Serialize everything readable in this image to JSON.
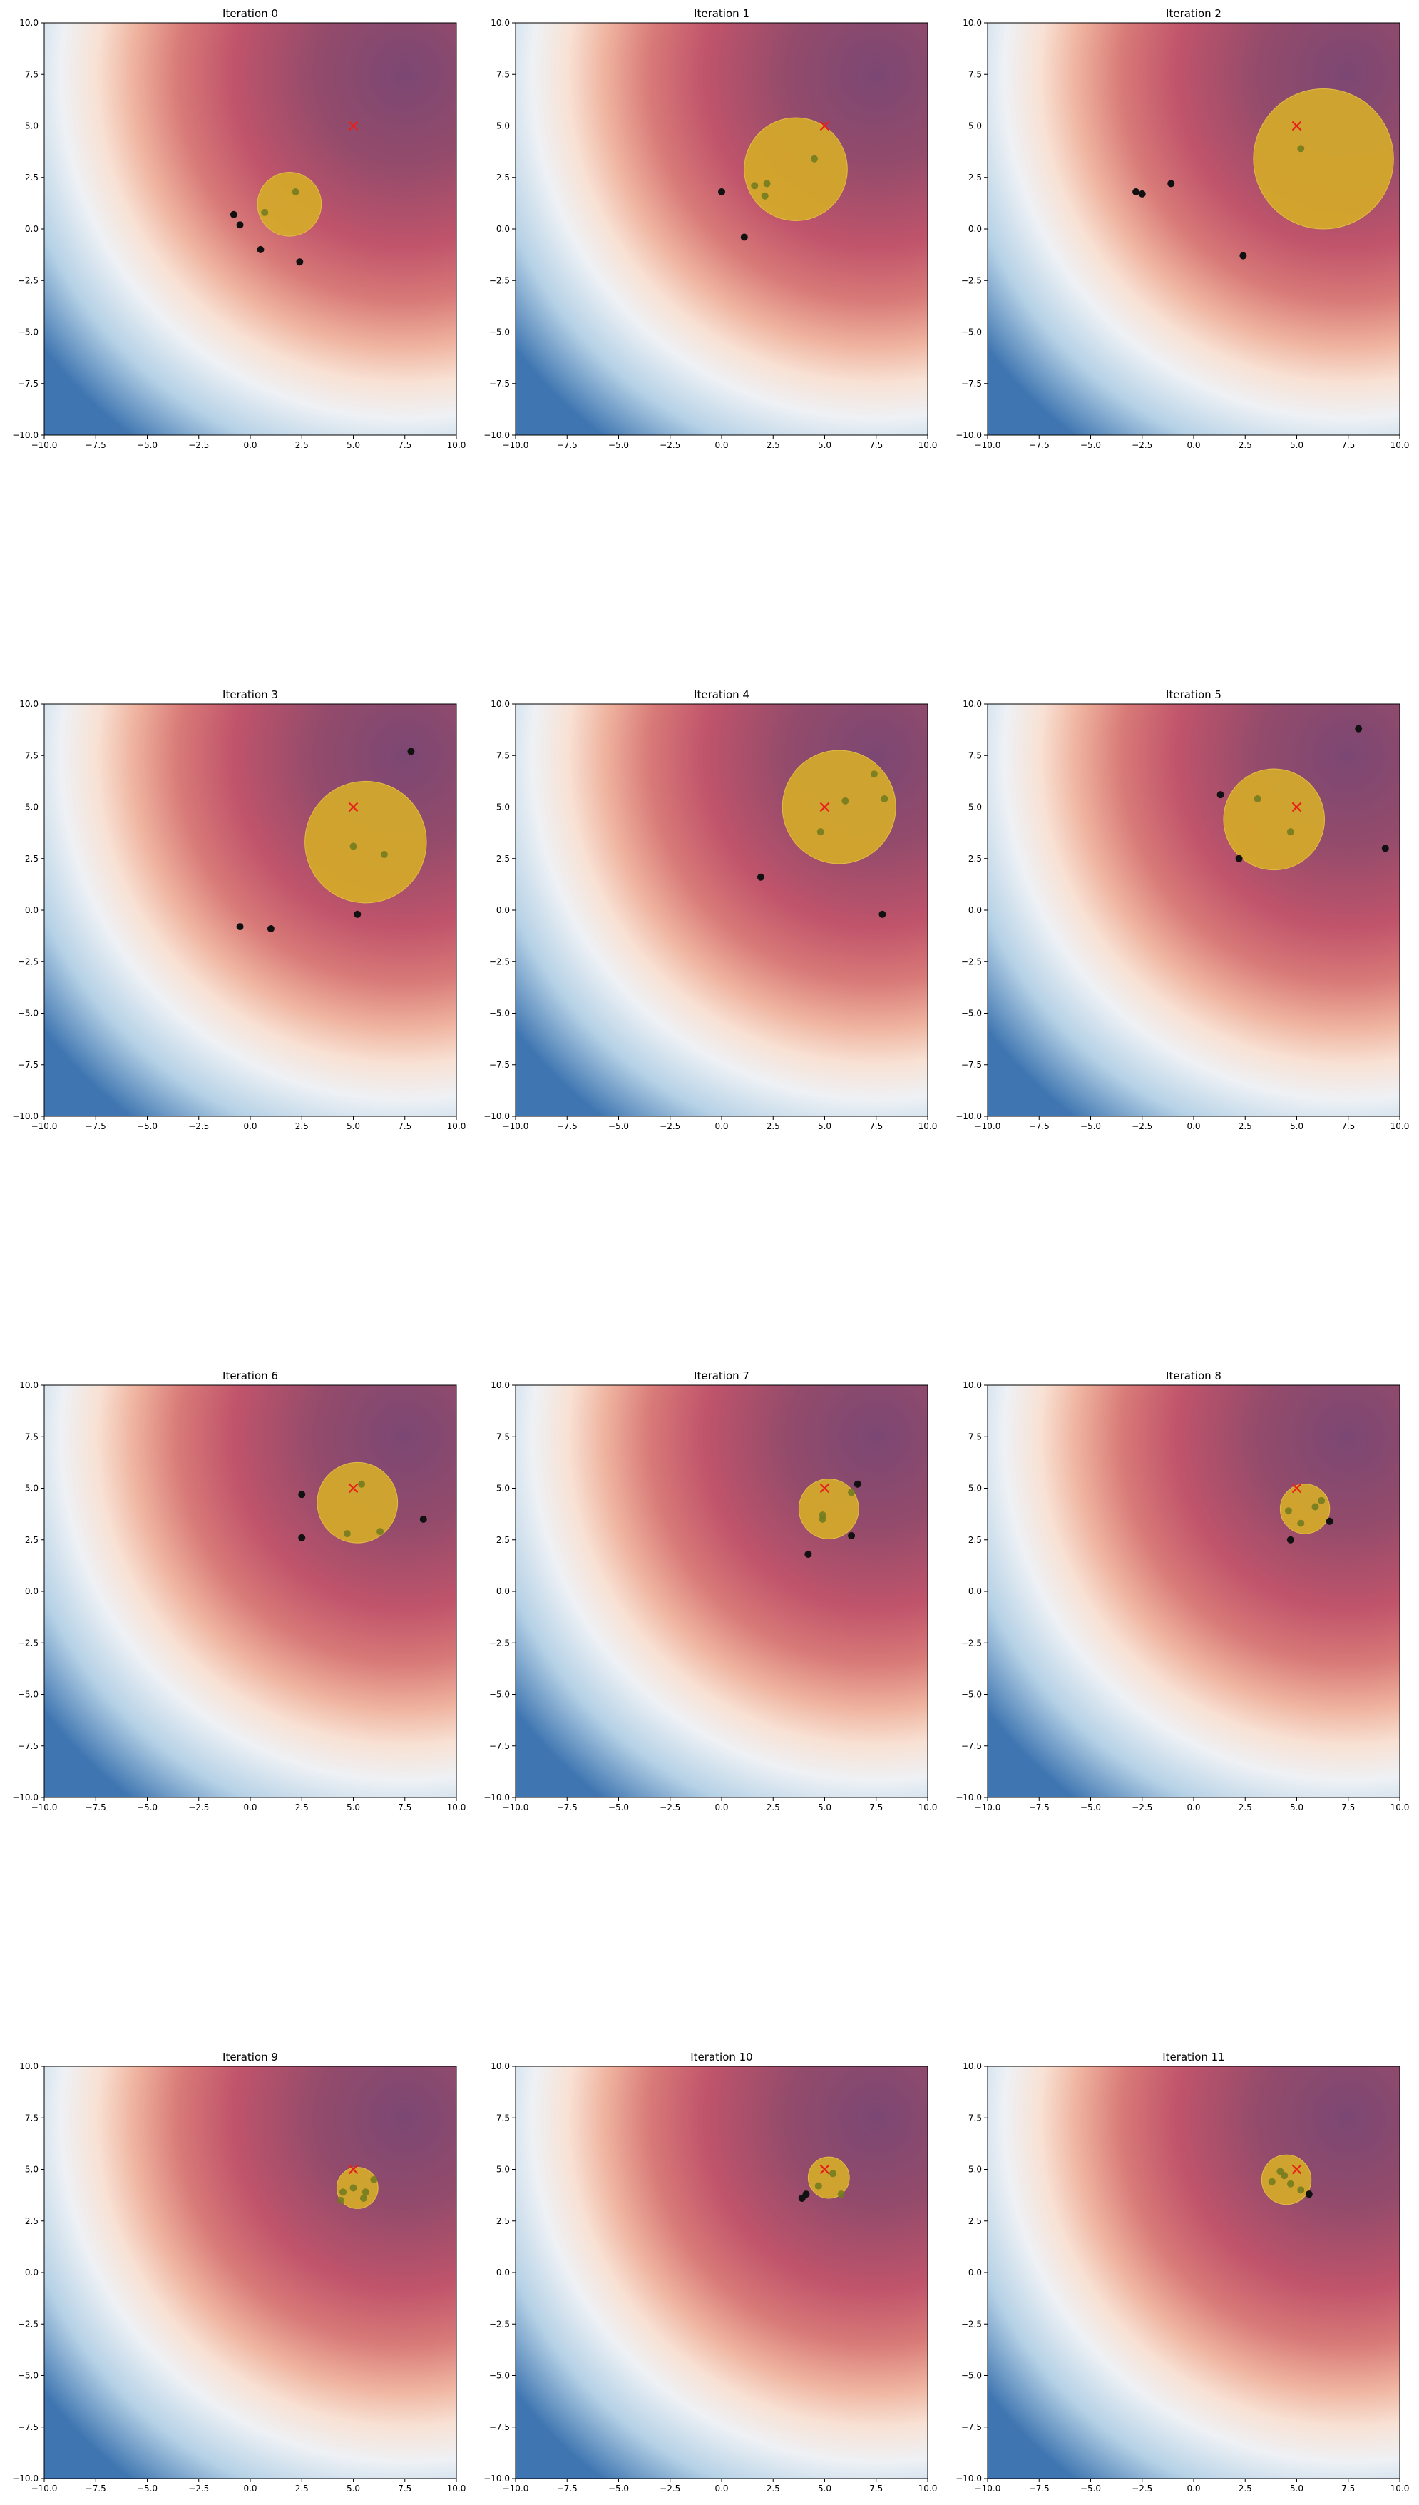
{
  "figure": {
    "background": "#ffffff",
    "accent_circle": "#d4aa2a",
    "target_marker": "#e8201a"
  },
  "chart_data": [
    {
      "type": "scatter",
      "title": "Iteration 0",
      "xlim": [
        -10,
        10
      ],
      "ylim": [
        -10,
        10
      ],
      "xticks": [
        -10,
        -7.5,
        -5,
        -2.5,
        0,
        2.5,
        5,
        7.5,
        10
      ],
      "yticks": [
        -10,
        -7.5,
        -5,
        -2.5,
        0,
        2.5,
        5,
        7.5,
        10
      ],
      "tick_format": "fixed1",
      "background": "heatmap",
      "target": {
        "x": 5,
        "y": 5,
        "marker": "x",
        "color": "#e8201a"
      },
      "circle": {
        "cx": 1.9,
        "cy": 1.2,
        "r": 1.55
      },
      "points": [
        {
          "x": -0.8,
          "y": 0.7
        },
        {
          "x": -0.5,
          "y": 0.2
        },
        {
          "x": 0.5,
          "y": -1.0
        },
        {
          "x": 2.4,
          "y": -1.6
        },
        {
          "x": 0.7,
          "y": 0.8
        },
        {
          "x": 2.2,
          "y": 1.8
        }
      ]
    },
    {
      "type": "scatter",
      "title": "Iteration 1",
      "xlim": [
        -10,
        10
      ],
      "ylim": [
        -10,
        10
      ],
      "xticks": [
        -10,
        -7.5,
        -5,
        -2.5,
        0,
        2.5,
        5,
        7.5,
        10
      ],
      "yticks": [
        -10,
        -7.5,
        -5,
        -2.5,
        0,
        2.5,
        5,
        7.5,
        10
      ],
      "tick_format": "fixed1",
      "background": "heatmap",
      "target": {
        "x": 5,
        "y": 5,
        "marker": "x",
        "color": "#e8201a"
      },
      "circle": {
        "cx": 3.6,
        "cy": 2.9,
        "r": 2.5
      },
      "points": [
        {
          "x": 0.0,
          "y": 1.8
        },
        {
          "x": 1.1,
          "y": -0.4
        },
        {
          "x": 1.6,
          "y": 2.1
        },
        {
          "x": 2.2,
          "y": 2.2
        },
        {
          "x": 2.1,
          "y": 1.6
        },
        {
          "x": 4.5,
          "y": 3.4
        }
      ]
    },
    {
      "type": "scatter",
      "title": "Iteration 2",
      "xlim": [
        -10,
        10
      ],
      "ylim": [
        -10,
        10
      ],
      "xticks": [
        -10,
        -7.5,
        -5,
        -2.5,
        0,
        2.5,
        5,
        7.5,
        10
      ],
      "yticks": [
        -10,
        -7.5,
        -5,
        -2.5,
        0,
        2.5,
        5,
        7.5,
        10
      ],
      "tick_format": "fixed1",
      "background": "heatmap",
      "target": {
        "x": 5,
        "y": 5,
        "marker": "x",
        "color": "#e8201a"
      },
      "circle": {
        "cx": 6.3,
        "cy": 3.4,
        "r": 3.4
      },
      "points": [
        {
          "x": -2.8,
          "y": 1.8
        },
        {
          "x": -2.5,
          "y": 1.7
        },
        {
          "x": -1.1,
          "y": 2.2
        },
        {
          "x": 2.4,
          "y": -1.3
        },
        {
          "x": 5.2,
          "y": 3.9
        }
      ]
    },
    {
      "type": "scatter",
      "title": "Iteration 3",
      "xlim": [
        -10,
        10
      ],
      "ylim": [
        -10,
        10
      ],
      "xticks": [
        -10,
        -7.5,
        -5,
        -2.5,
        0,
        2.5,
        5,
        7.5,
        10
      ],
      "yticks": [
        -10,
        -7.5,
        -5,
        -2.5,
        0,
        2.5,
        5,
        7.5,
        10
      ],
      "tick_format": "fixed1",
      "background": "heatmap",
      "target": {
        "x": 5,
        "y": 5,
        "marker": "x",
        "color": "#e8201a"
      },
      "circle": {
        "cx": 5.6,
        "cy": 3.3,
        "r": 2.95
      },
      "points": [
        {
          "x": 7.8,
          "y": 7.7
        },
        {
          "x": -0.5,
          "y": -0.8
        },
        {
          "x": 1.0,
          "y": -0.9
        },
        {
          "x": 5.2,
          "y": -0.2
        },
        {
          "x": 5.0,
          "y": 3.1
        },
        {
          "x": 6.5,
          "y": 2.7
        }
      ]
    },
    {
      "type": "scatter",
      "title": "Iteration 4",
      "xlim": [
        -10,
        10
      ],
      "ylim": [
        -10,
        10
      ],
      "xticks": [
        -10,
        -7.5,
        -5,
        -2.5,
        0,
        2.5,
        5,
        7.5,
        10
      ],
      "yticks": [
        -10,
        -7.5,
        -5,
        -2.5,
        0,
        2.5,
        5,
        7.5,
        10
      ],
      "tick_format": "fixed1",
      "background": "heatmap",
      "target": {
        "x": 5,
        "y": 5,
        "marker": "x",
        "color": "#e8201a"
      },
      "circle": {
        "cx": 5.7,
        "cy": 5.0,
        "r": 2.75
      },
      "points": [
        {
          "x": 1.9,
          "y": 1.6
        },
        {
          "x": 7.8,
          "y": -0.2
        },
        {
          "x": 4.8,
          "y": 3.8
        },
        {
          "x": 6.0,
          "y": 5.3
        },
        {
          "x": 7.4,
          "y": 6.6
        },
        {
          "x": 7.9,
          "y": 5.4
        }
      ]
    },
    {
      "type": "scatter",
      "title": "Iteration 5",
      "xlim": [
        -10,
        10
      ],
      "ylim": [
        -10,
        10
      ],
      "xticks": [
        -10,
        -7.5,
        -5,
        -2.5,
        0,
        2.5,
        5,
        7.5,
        10
      ],
      "yticks": [
        -10,
        -7.5,
        -5,
        -2.5,
        0,
        2.5,
        5,
        7.5,
        10
      ],
      "tick_format": "fixed1",
      "background": "heatmap",
      "target": {
        "x": 5,
        "y": 5,
        "marker": "x",
        "color": "#e8201a"
      },
      "circle": {
        "cx": 3.9,
        "cy": 4.4,
        "r": 2.45
      },
      "points": [
        {
          "x": 8.0,
          "y": 8.8
        },
        {
          "x": 1.3,
          "y": 5.6
        },
        {
          "x": 2.2,
          "y": 2.5
        },
        {
          "x": 9.3,
          "y": 3.0
        },
        {
          "x": 3.1,
          "y": 5.4
        },
        {
          "x": 4.7,
          "y": 3.8
        }
      ]
    },
    {
      "type": "scatter",
      "title": "Iteration 6",
      "xlim": [
        -10,
        10
      ],
      "ylim": [
        -10,
        10
      ],
      "xticks": [
        -10,
        -7.5,
        -5,
        -2.5,
        0,
        2.5,
        5,
        7.5,
        10
      ],
      "yticks": [
        -10,
        -7.5,
        -5,
        -2.5,
        0,
        2.5,
        5,
        7.5,
        10
      ],
      "tick_format": "fixed1",
      "background": "heatmap",
      "target": {
        "x": 5,
        "y": 5,
        "marker": "x",
        "color": "#e8201a"
      },
      "circle": {
        "cx": 5.2,
        "cy": 4.3,
        "r": 1.95
      },
      "points": [
        {
          "x": 2.5,
          "y": 4.7
        },
        {
          "x": 2.5,
          "y": 2.6
        },
        {
          "x": 8.4,
          "y": 3.5
        },
        {
          "x": 5.4,
          "y": 5.2
        },
        {
          "x": 4.7,
          "y": 2.8
        },
        {
          "x": 6.3,
          "y": 2.9
        }
      ]
    },
    {
      "type": "scatter",
      "title": "Iteration 7",
      "xlim": [
        -10,
        10
      ],
      "ylim": [
        -10,
        10
      ],
      "xticks": [
        -10,
        -7.5,
        -5,
        -2.5,
        0,
        2.5,
        5,
        7.5,
        10
      ],
      "yticks": [
        -10,
        -7.5,
        -5,
        -2.5,
        0,
        2.5,
        5,
        7.5,
        10
      ],
      "tick_format": "fixed1",
      "background": "heatmap",
      "target": {
        "x": 5,
        "y": 5,
        "marker": "x",
        "color": "#e8201a"
      },
      "circle": {
        "cx": 5.2,
        "cy": 4.0,
        "r": 1.45
      },
      "points": [
        {
          "x": 4.2,
          "y": 1.8
        },
        {
          "x": 6.3,
          "y": 2.7
        },
        {
          "x": 6.6,
          "y": 5.2
        },
        {
          "x": 4.9,
          "y": 3.7
        },
        {
          "x": 4.9,
          "y": 3.5
        },
        {
          "x": 6.3,
          "y": 4.8
        }
      ]
    },
    {
      "type": "scatter",
      "title": "Iteration 8",
      "xlim": [
        -10,
        10
      ],
      "ylim": [
        -10,
        10
      ],
      "xticks": [
        -10,
        -7.5,
        -5,
        -2.5,
        0,
        2.5,
        5,
        7.5,
        10
      ],
      "yticks": [
        -10,
        -7.5,
        -5,
        -2.5,
        0,
        2.5,
        5,
        7.5,
        10
      ],
      "tick_format": "fixed1",
      "background": "heatmap",
      "target": {
        "x": 5,
        "y": 5,
        "marker": "x",
        "color": "#e8201a"
      },
      "circle": {
        "cx": 5.4,
        "cy": 4.0,
        "r": 1.2
      },
      "points": [
        {
          "x": 4.7,
          "y": 2.5
        },
        {
          "x": 6.6,
          "y": 3.4
        },
        {
          "x": 4.6,
          "y": 3.9
        },
        {
          "x": 5.2,
          "y": 3.3
        },
        {
          "x": 5.9,
          "y": 4.1
        },
        {
          "x": 6.2,
          "y": 4.4
        }
      ]
    },
    {
      "type": "scatter",
      "title": "Iteration 9",
      "xlim": [
        -10,
        10
      ],
      "ylim": [
        -10,
        10
      ],
      "xticks": [
        -10,
        -7.5,
        -5,
        -2.5,
        0,
        2.5,
        5,
        7.5,
        10
      ],
      "yticks": [
        -10,
        -7.5,
        -5,
        -2.5,
        0,
        2.5,
        5,
        7.5,
        10
      ],
      "tick_format": "fixed1",
      "background": "heatmap",
      "target": {
        "x": 5,
        "y": 5,
        "marker": "x",
        "color": "#e8201a"
      },
      "circle": {
        "cx": 5.2,
        "cy": 4.1,
        "r": 1.0
      },
      "points": [
        {
          "x": 4.4,
          "y": 3.5
        },
        {
          "x": 4.5,
          "y": 3.9
        },
        {
          "x": 5.0,
          "y": 4.1
        },
        {
          "x": 5.5,
          "y": 3.6
        },
        {
          "x": 5.6,
          "y": 3.9
        },
        {
          "x": 6.0,
          "y": 4.5
        }
      ]
    },
    {
      "type": "scatter",
      "title": "Iteration 10",
      "xlim": [
        -10,
        10
      ],
      "ylim": [
        -10,
        10
      ],
      "xticks": [
        -10,
        -7.5,
        -5,
        -2.5,
        0,
        2.5,
        5,
        7.5,
        10
      ],
      "yticks": [
        -10,
        -7.5,
        -5,
        -2.5,
        0,
        2.5,
        5,
        7.5,
        10
      ],
      "tick_format": "fixed1",
      "background": "heatmap",
      "target": {
        "x": 5,
        "y": 5,
        "marker": "x",
        "color": "#e8201a"
      },
      "circle": {
        "cx": 5.2,
        "cy": 4.6,
        "r": 1.0
      },
      "points": [
        {
          "x": 3.9,
          "y": 3.6
        },
        {
          "x": 4.1,
          "y": 3.8
        },
        {
          "x": 4.7,
          "y": 4.2
        },
        {
          "x": 5.4,
          "y": 4.8
        },
        {
          "x": 5.8,
          "y": 3.8
        }
      ]
    },
    {
      "type": "scatter",
      "title": "Iteration 11",
      "xlim": [
        -10,
        10
      ],
      "ylim": [
        -10,
        10
      ],
      "xticks": [
        -10,
        -7.5,
        -5,
        -2.5,
        0,
        2.5,
        5,
        7.5,
        10
      ],
      "yticks": [
        -10,
        -7.5,
        -5,
        -2.5,
        0,
        2.5,
        5,
        7.5,
        10
      ],
      "tick_format": "fixed1",
      "background": "heatmap",
      "target": {
        "x": 5,
        "y": 5,
        "marker": "x",
        "color": "#e8201a"
      },
      "circle": {
        "cx": 4.5,
        "cy": 4.5,
        "r": 1.2
      },
      "points": [
        {
          "x": 3.8,
          "y": 4.4
        },
        {
          "x": 4.2,
          "y": 4.9
        },
        {
          "x": 4.4,
          "y": 4.7
        },
        {
          "x": 4.7,
          "y": 4.3
        },
        {
          "x": 5.2,
          "y": 4.0
        },
        {
          "x": 5.6,
          "y": 3.8
        }
      ]
    }
  ]
}
